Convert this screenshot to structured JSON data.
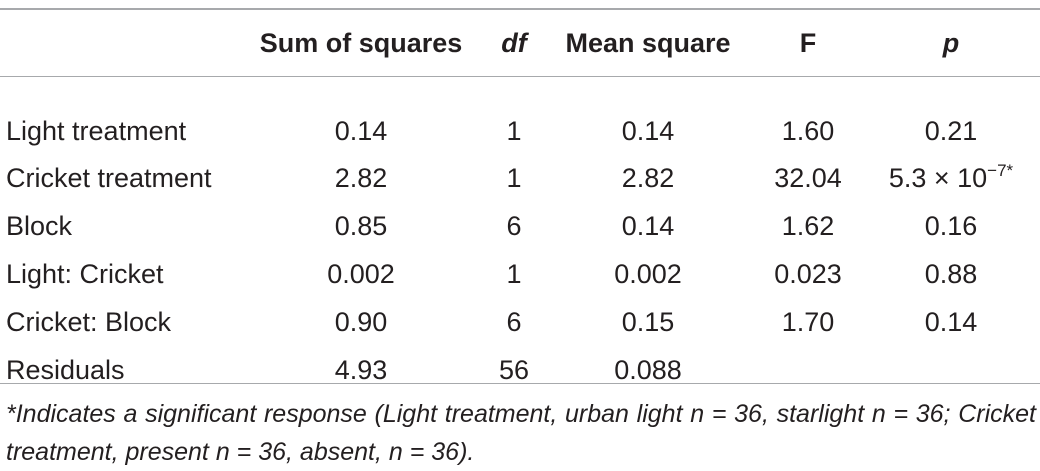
{
  "table": {
    "headers": [
      "",
      "Sum of squares",
      "df",
      "Mean square",
      "F",
      "p"
    ],
    "rows": [
      {
        "label": "Light treatment",
        "ss": "0.14",
        "df": "1",
        "ms": "0.14",
        "f": "1.60",
        "p_main": "0.21",
        "p_sup": ""
      },
      {
        "label": "Cricket treatment",
        "ss": "2.82",
        "df": "1",
        "ms": "2.82",
        "f": "32.04",
        "p_main": "5.3 × 10",
        "p_sup": "−7*"
      },
      {
        "label": "Block",
        "ss": "0.85",
        "df": "6",
        "ms": "0.14",
        "f": "1.62",
        "p_main": "0.16",
        "p_sup": ""
      },
      {
        "label": "Light: Cricket",
        "ss": "0.002",
        "df": "1",
        "ms": "0.002",
        "f": "0.023",
        "p_main": "0.88",
        "p_sup": ""
      },
      {
        "label": "Cricket: Block",
        "ss": "0.90",
        "df": "6",
        "ms": "0.15",
        "f": "1.70",
        "p_main": "0.14",
        "p_sup": ""
      },
      {
        "label": "Residuals",
        "ss": "4.93",
        "df": "56",
        "ms": "0.088",
        "f": "",
        "p_main": "",
        "p_sup": ""
      }
    ]
  },
  "footnote": "*Indicates a significant response (Light treatment, urban light n = 36, starlight n = 36; Cricket treatment, present n = 36, absent, n = 36).",
  "colors": {
    "text": "#231f20",
    "rule": "#a7a9ac"
  }
}
